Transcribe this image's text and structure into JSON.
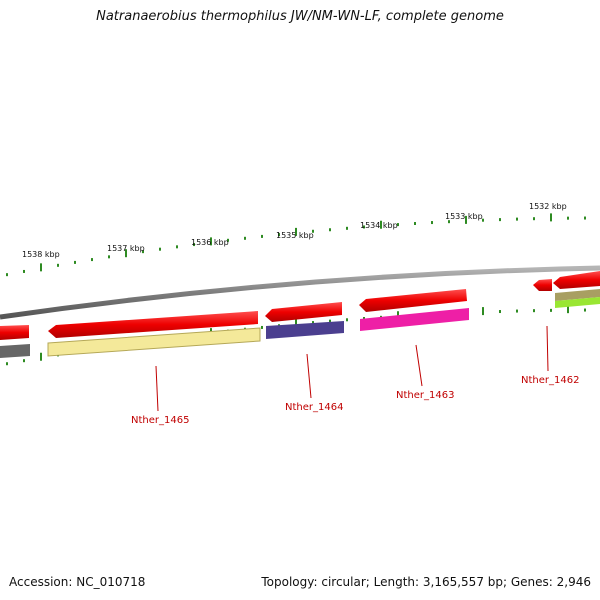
{
  "title": "Natranaerobius thermophilus JW/NM-WN-LF, complete genome",
  "footer": {
    "accession": "Accession: NC_010718",
    "summary": "Topology: circular; Length: 3,165,557 bp; Genes: 2,946"
  },
  "ruler": {
    "unit": "kbp",
    "labels": [
      "1538 kbp",
      "1537 kbp",
      "1536 kbp",
      "1535 kbp",
      "1534 kbp",
      "1533 kbp",
      "1532 kbp"
    ],
    "tick_color": "#2e8b22"
  },
  "genes": [
    {
      "label": "Nther_1465",
      "cds_color": "#f4e99a"
    },
    {
      "label": "Nther_1464",
      "cds_color": "#4b3f8f"
    },
    {
      "label": "Nther_1463",
      "cds_color": "#ee1fa6"
    },
    {
      "label": "Nther_1462",
      "cds_color": "#99e632"
    }
  ],
  "colors": {
    "gene_arrow": "#ee0000",
    "backbone": "#8a8a8a",
    "label_leader": "#c00000"
  }
}
